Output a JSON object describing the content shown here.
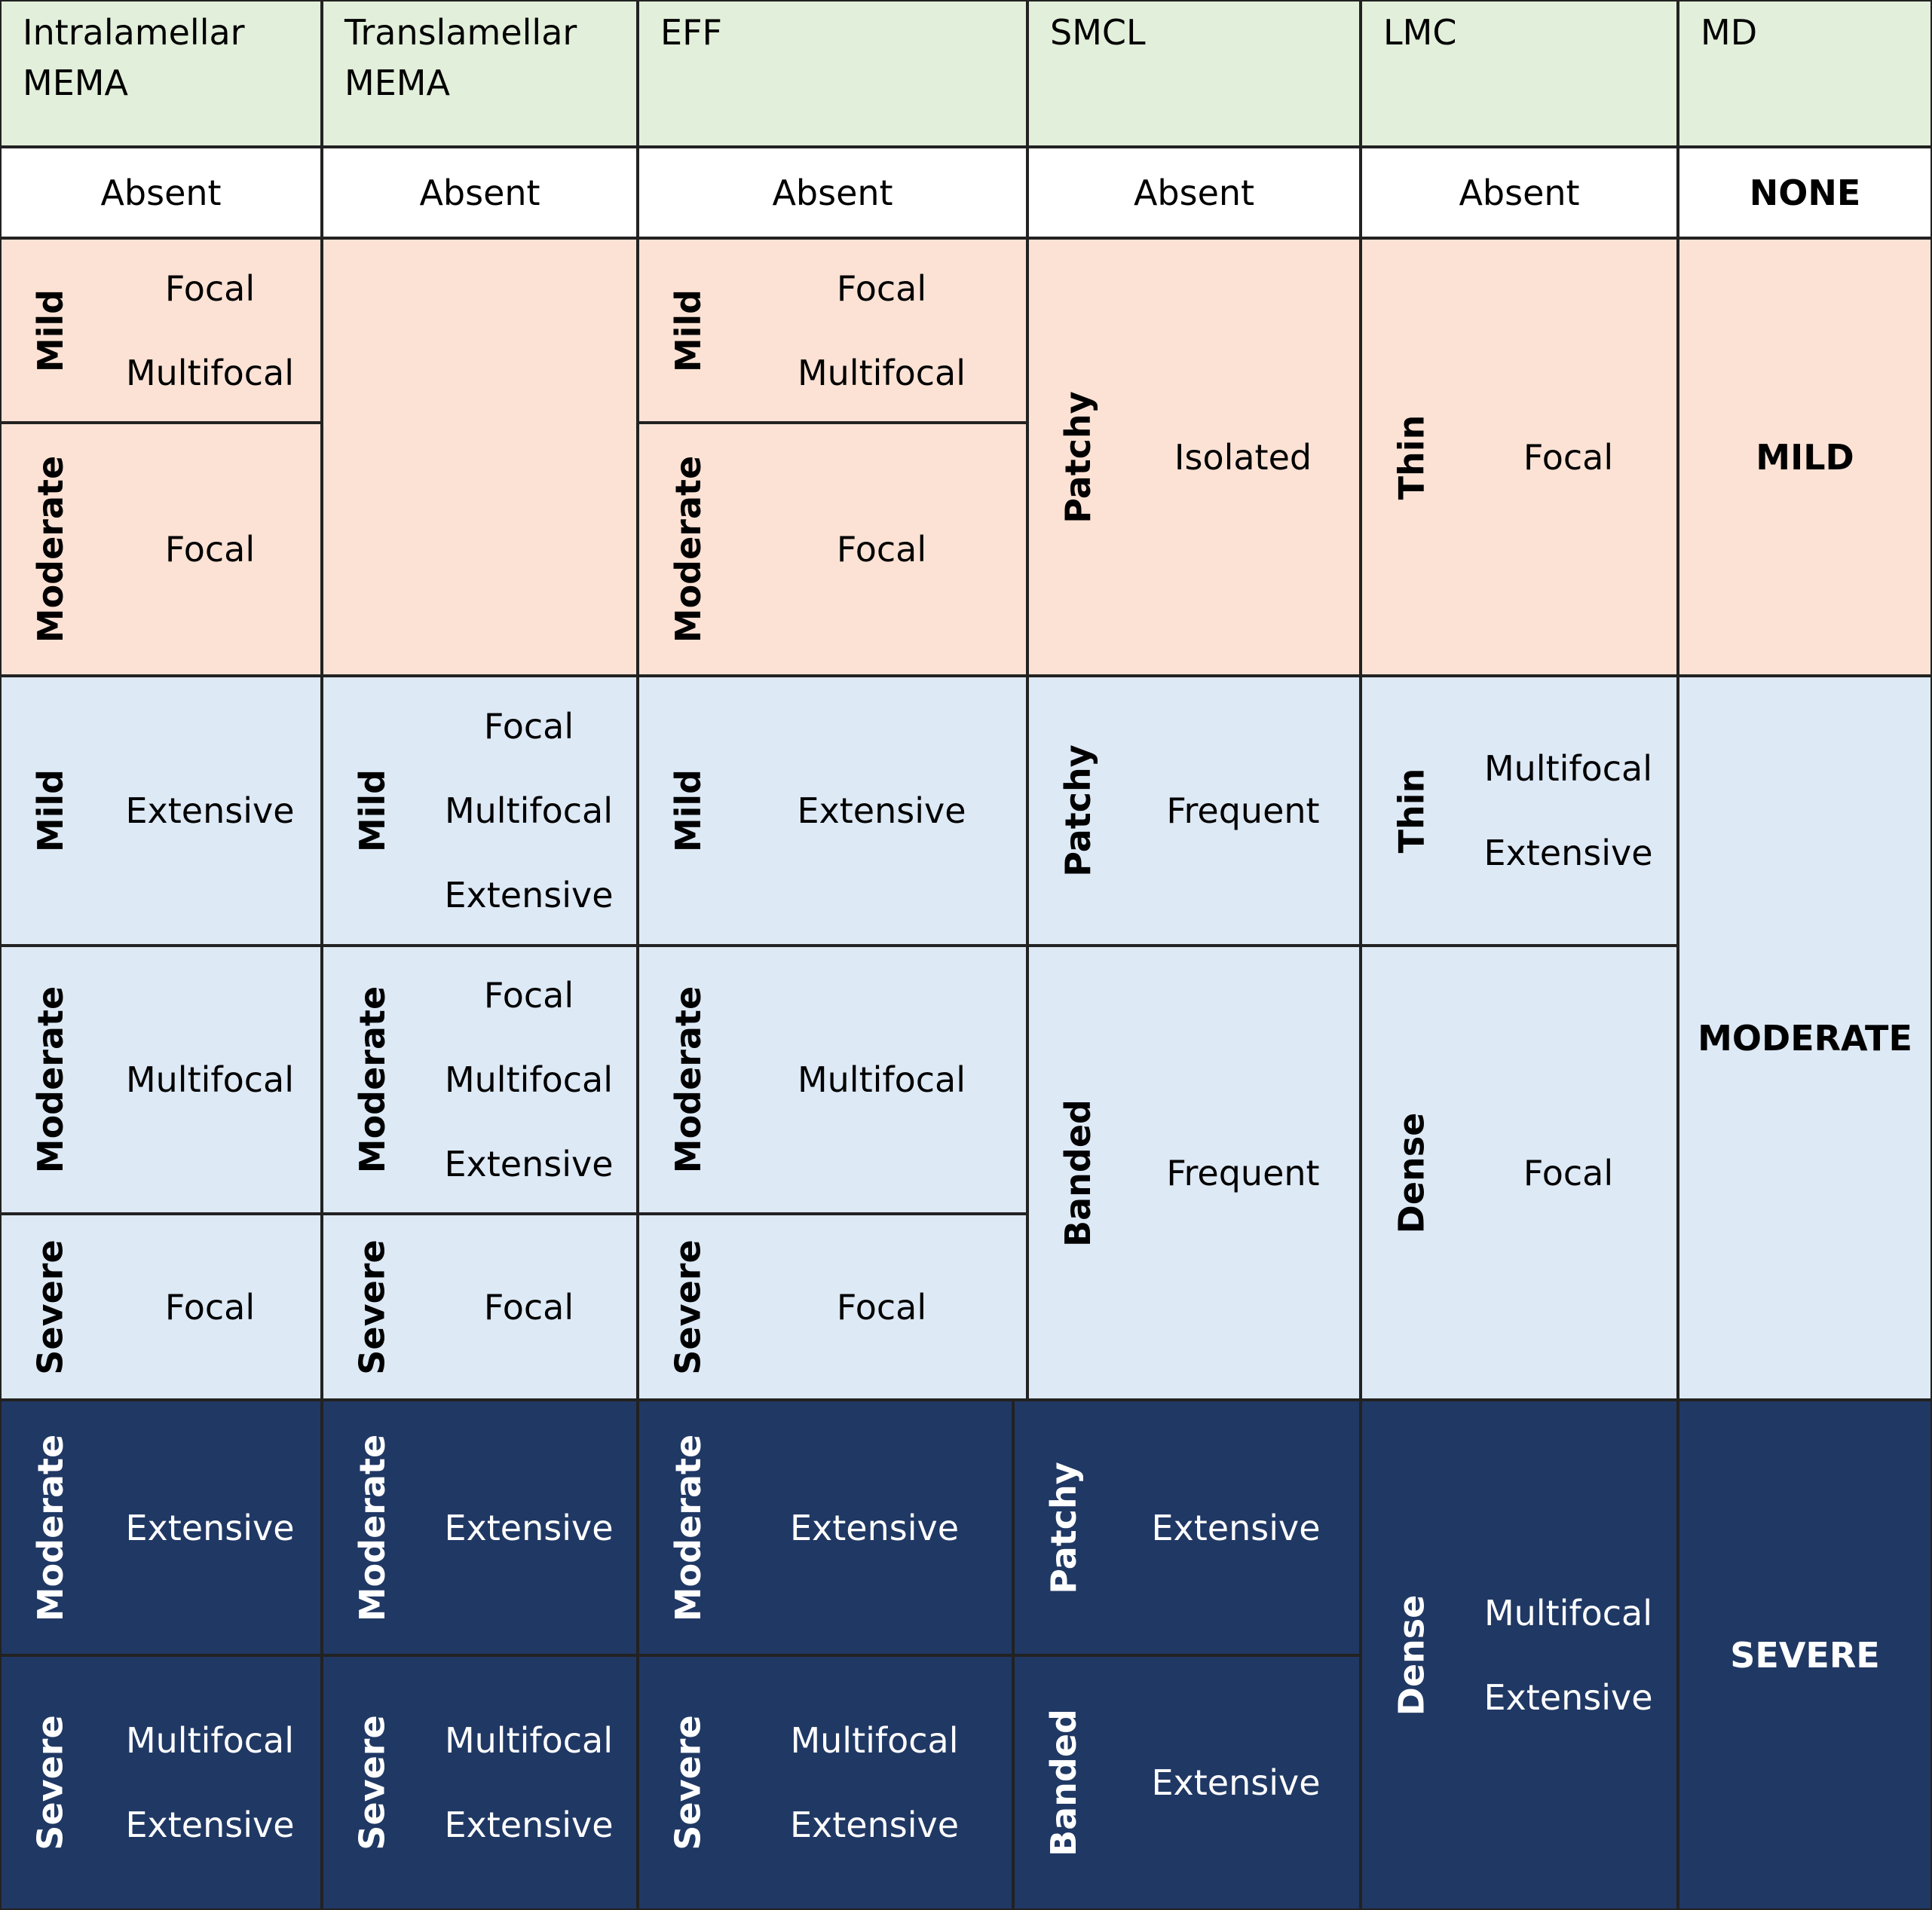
{
  "header": [
    "Intralamellar MEMA",
    "Translamellar MEMA",
    "EFF",
    "SMCL",
    "LMC",
    "MD"
  ],
  "absent_row": [
    "Absent",
    "Absent",
    "Absent",
    "Absent",
    "Absent",
    "NONE"
  ],
  "sections": [
    {
      "columns": [
        [
          {
            "grade": "Mild",
            "items": [
              "Focal",
              "Multifocal"
            ]
          },
          {
            "grade": "Moderate",
            "items": [
              "Focal"
            ]
          }
        ],
        [],
        [
          {
            "grade": "Mild",
            "items": [
              "Focal",
              "Multifocal"
            ]
          },
          {
            "grade": "Moderate",
            "items": [
              "Focal"
            ]
          }
        ],
        [
          {
            "grade": "Patchy",
            "items": [
              "Isolated"
            ]
          }
        ],
        [
          {
            "grade": "Thin",
            "items": [
              "Focal"
            ]
          }
        ]
      ],
      "md": "MILD"
    },
    {
      "columns": [
        [
          {
            "grade": "Mild",
            "items": [
              "Extensive"
            ]
          },
          {
            "grade": "Moderate",
            "items": [
              "Multifocal"
            ]
          },
          {
            "grade": "Severe",
            "items": [
              "Focal"
            ]
          }
        ],
        [
          {
            "grade": "Mild",
            "items": [
              "Focal",
              "Multifocal",
              "Extensive"
            ]
          },
          {
            "grade": "Moderate",
            "items": [
              "Focal",
              "Multifocal",
              "Extensive"
            ]
          },
          {
            "grade": "Severe",
            "items": [
              "Focal"
            ]
          }
        ],
        [
          {
            "grade": "Mild",
            "items": [
              "Extensive"
            ]
          },
          {
            "grade": "Moderate",
            "items": [
              "Multifocal"
            ]
          },
          {
            "grade": "Severe",
            "items": [
              "Focal"
            ]
          }
        ],
        [
          {
            "grade": "Patchy",
            "items": [
              "Frequent"
            ]
          },
          {
            "grade": "Banded",
            "items": [
              "Frequent"
            ]
          }
        ],
        [
          {
            "grade": "Thin",
            "items": [
              "Multifocal",
              "Extensive"
            ]
          },
          {
            "grade": "Dense",
            "items": [
              "Focal"
            ]
          }
        ]
      ],
      "md": "MODERATE"
    },
    {
      "columns": [
        [
          {
            "grade": "Moderate",
            "items": [
              "Extensive"
            ]
          },
          {
            "grade": "Severe",
            "items": [
              "Multifocal",
              "Extensive"
            ]
          }
        ],
        [
          {
            "grade": "Moderate",
            "items": [
              "Extensive"
            ]
          },
          {
            "grade": "Severe",
            "items": [
              "Multifocal",
              "Extensive"
            ]
          }
        ],
        [
          {
            "grade": "Moderate",
            "items": [
              "Extensive"
            ]
          },
          {
            "grade": "Severe",
            "items": [
              "Multifocal",
              "Extensive"
            ]
          }
        ],
        [
          {
            "grade": "Patchy",
            "items": [
              "Extensive"
            ]
          },
          {
            "grade": "Banded",
            "items": [
              "Extensive"
            ]
          }
        ],
        [
          {
            "grade": "Dense",
            "items": [
              "Multifocal",
              "Extensive"
            ]
          }
        ]
      ],
      "md": "SEVERE"
    }
  ]
}
